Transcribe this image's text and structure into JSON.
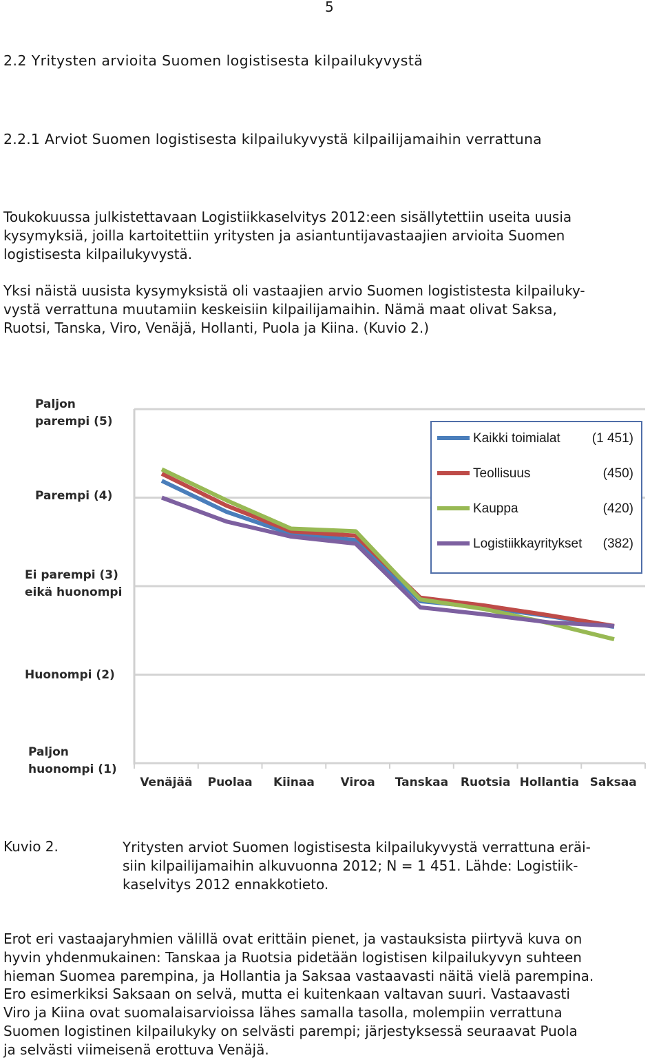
{
  "page_number": "5",
  "section": {
    "heading": "2.2  Yritysten arvioita Suomen logistisesta kilpailukyvystä",
    "subheading": "2.2.1  Arviot Suomen logistisesta kilpailukyvystä kilpailijamaihin verrattuna"
  },
  "paragraphs": {
    "p1": [
      "Toukokuussa julkistettavaan Logistiikkaselvitys 2012:een sisällytettiin useita uusia",
      "kysymyksiä, joilla kartoitettiin yritysten ja asiantuntijavastaajien arvioita Suomen",
      "logistisesta kilpailukyvystä."
    ],
    "p2": [
      "Yksi näistä uusista kysymyksistä oli vastaajien arvio Suomen logististesta kilpailuky-",
      "vystä verrattuna muutamiin keskeisiin kilpailijamaihin. Nämä maat olivat Saksa,",
      "Ruotsi, Tanska, Viro, Venäjä, Hollanti, Puola ja Kiina. (Kuvio 2.)"
    ],
    "p3": [
      "Erot eri vastaajaryhmien välillä ovat erittäin pienet, ja vastauksista piirtyvä kuva on",
      "hyvin yhdenmukainen: Tanskaa ja Ruotsia pidetään logistisen kilpailukyvyn suhteen",
      "hieman Suomea parempina, ja Hollantia ja Saksaa vastaavasti näitä vielä parempina.",
      "Ero esimerkiksi Saksaan on selvä, mutta ei kuitenkaan valtavan suuri. Vastaavasti",
      "Viro ja Kiina ovat suomalaisarvioissa lähes samalla tasolla, molempiin verrattuna",
      "Suomen logistinen kilpailukyky on selvästi parempi; järjestyksessä seuraavat  Puola",
      "ja selvästi viimeisenä erottuva Venäjä."
    ]
  },
  "caption": {
    "label": "Kuvio 2.",
    "lines": [
      "Yritysten arviot Suomen logistisesta kilpailukyvystä verrattuna eräi-",
      "siin kilpailijamaihin alkuvuonna 2012; N = 1 451. Lähde: Logistiik-",
      "kaselvitys 2012 ennakkotieto."
    ]
  },
  "chart_data": {
    "type": "line",
    "categories": [
      "Venäjää",
      "Puolaa",
      "Kiinaa",
      "Viroa",
      "Tanskaa",
      "Ruotsia",
      "Hollantia",
      "Saksaa"
    ],
    "y_ticks": [
      {
        "value": 5,
        "lines": [
          "Paljon",
          "parempi (5)"
        ]
      },
      {
        "value": 4,
        "lines": [
          "Parempi (4)"
        ]
      },
      {
        "value": 3,
        "lines": [
          "Ei parempi (3)",
          "eikä huonompi"
        ]
      },
      {
        "value": 2,
        "lines": [
          "Huonompi (2)"
        ]
      },
      {
        "value": 1,
        "lines": [
          "Paljon",
          "huonompi (1)"
        ]
      }
    ],
    "ylim": [
      1,
      5
    ],
    "legend_position": "top-right",
    "series": [
      {
        "name": "Kaikki toimialat",
        "n": "(1 451)",
        "color": "#4a7ebb",
        "values": [
          4.19,
          3.84,
          3.59,
          3.52,
          2.83,
          2.76,
          2.66,
          2.54
        ]
      },
      {
        "name": "Teollisuus",
        "n": "(450)",
        "color": "#be4b48",
        "values": [
          4.27,
          3.91,
          3.62,
          3.57,
          2.87,
          2.78,
          2.67,
          2.55
        ]
      },
      {
        "name": "Kauppa",
        "n": "(420)",
        "color": "#98b954",
        "values": [
          4.32,
          3.97,
          3.65,
          3.62,
          2.85,
          2.74,
          2.58,
          2.4
        ]
      },
      {
        "name": "Logistiikkayritykset",
        "n": "(382)",
        "color": "#7d60a0",
        "values": [
          4.0,
          3.73,
          3.56,
          3.48,
          2.76,
          2.68,
          2.59,
          2.55
        ]
      }
    ]
  }
}
